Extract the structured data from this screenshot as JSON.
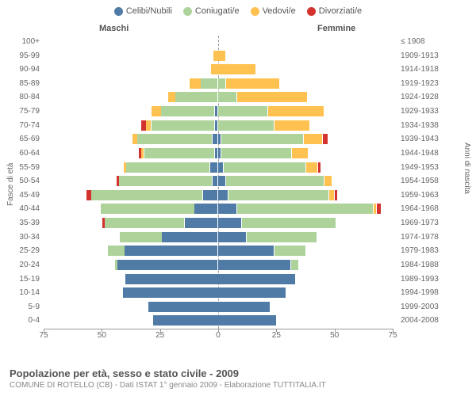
{
  "legend": [
    {
      "label": "Celibi/Nubili",
      "color": "#4f7ba6"
    },
    {
      "label": "Coniugati/e",
      "color": "#add39b"
    },
    {
      "label": "Vedovi/e",
      "color": "#ffc251"
    },
    {
      "label": "Divorziati/e",
      "color": "#d4322e"
    }
  ],
  "gender_left": "Maschi",
  "gender_right": "Femmine",
  "axis_left_label": "Fasce di età",
  "axis_right_label": "Anni di nascita",
  "x_ticks": [
    75,
    50,
    25,
    0,
    25,
    50,
    75
  ],
  "x_max": 75,
  "colors": {
    "single": "#4f7ba6",
    "married": "#add39b",
    "widowed": "#ffc251",
    "divorced": "#d4322e",
    "grid": "#999999",
    "bg": "#ffffff"
  },
  "typography": {
    "tick_fontsize": 10,
    "legend_fontsize": 11,
    "title_fontsize": 13
  },
  "rows": [
    {
      "age": "100+",
      "year": "≤ 1908",
      "m": [
        0,
        0,
        0,
        0
      ],
      "f": [
        0,
        0,
        0,
        0
      ]
    },
    {
      "age": "95-99",
      "year": "1909-1913",
      "m": [
        0,
        0,
        2,
        0
      ],
      "f": [
        0,
        0,
        3,
        0
      ]
    },
    {
      "age": "90-94",
      "year": "1914-1918",
      "m": [
        0,
        0,
        3,
        0
      ],
      "f": [
        0,
        0,
        16,
        0
      ]
    },
    {
      "age": "85-89",
      "year": "1919-1923",
      "m": [
        0,
        7,
        5,
        0
      ],
      "f": [
        0,
        3,
        23,
        0
      ]
    },
    {
      "age": "80-84",
      "year": "1924-1928",
      "m": [
        0,
        18,
        3,
        0
      ],
      "f": [
        0,
        8,
        30,
        0
      ]
    },
    {
      "age": "75-79",
      "year": "1929-1933",
      "m": [
        1,
        23,
        4,
        0
      ],
      "f": [
        0,
        21,
        24,
        0
      ]
    },
    {
      "age": "70-74",
      "year": "1934-1938",
      "m": [
        1,
        27,
        2,
        2
      ],
      "f": [
        0,
        24,
        15,
        0
      ]
    },
    {
      "age": "65-69",
      "year": "1939-1943",
      "m": [
        2,
        32,
        2,
        0
      ],
      "f": [
        1,
        35,
        8,
        2
      ]
    },
    {
      "age": "60-64",
      "year": "1944-1948",
      "m": [
        1,
        30,
        1,
        1
      ],
      "f": [
        1,
        30,
        7,
        0
      ]
    },
    {
      "age": "55-59",
      "year": "1949-1953",
      "m": [
        3,
        36,
        1,
        0
      ],
      "f": [
        2,
        35,
        5,
        1
      ]
    },
    {
      "age": "50-54",
      "year": "1954-1958",
      "m": [
        2,
        40,
        0,
        1
      ],
      "f": [
        3,
        42,
        3,
        0
      ]
    },
    {
      "age": "45-49",
      "year": "1959-1963",
      "m": [
        6,
        48,
        0,
        2
      ],
      "f": [
        4,
        43,
        2,
        1
      ]
    },
    {
      "age": "40-44",
      "year": "1964-1968",
      "m": [
        10,
        40,
        0,
        0
      ],
      "f": [
        8,
        58,
        1,
        2
      ]
    },
    {
      "age": "35-39",
      "year": "1969-1973",
      "m": [
        14,
        34,
        0,
        1
      ],
      "f": [
        10,
        40,
        0,
        0
      ]
    },
    {
      "age": "30-34",
      "year": "1974-1978",
      "m": [
        24,
        18,
        0,
        0
      ],
      "f": [
        12,
        30,
        0,
        0
      ]
    },
    {
      "age": "25-29",
      "year": "1979-1983",
      "m": [
        40,
        7,
        0,
        0
      ],
      "f": [
        24,
        13,
        0,
        0
      ]
    },
    {
      "age": "20-24",
      "year": "1984-1988",
      "m": [
        43,
        1,
        0,
        0
      ],
      "f": [
        31,
        3,
        0,
        0
      ]
    },
    {
      "age": "15-19",
      "year": "1989-1993",
      "m": [
        40,
        0,
        0,
        0
      ],
      "f": [
        33,
        0,
        0,
        0
      ]
    },
    {
      "age": "10-14",
      "year": "1994-1998",
      "m": [
        41,
        0,
        0,
        0
      ],
      "f": [
        29,
        0,
        0,
        0
      ]
    },
    {
      "age": "5-9",
      "year": "1999-2003",
      "m": [
        30,
        0,
        0,
        0
      ],
      "f": [
        22,
        0,
        0,
        0
      ]
    },
    {
      "age": "0-4",
      "year": "2004-2008",
      "m": [
        28,
        0,
        0,
        0
      ],
      "f": [
        25,
        0,
        0,
        0
      ]
    }
  ],
  "footer_title": "Popolazione per età, sesso e stato civile - 2009",
  "footer_sub": "COMUNE DI ROTELLO (CB) - Dati ISTAT 1° gennaio 2009 - Elaborazione TUTTITALIA.IT"
}
